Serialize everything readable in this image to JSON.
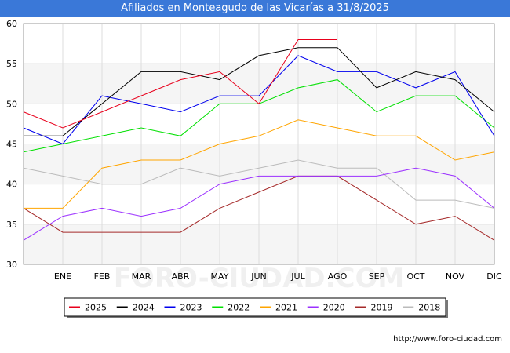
{
  "header": {
    "title": "Afiliados en Monteagudo de las Vicarías a 31/8/2025"
  },
  "footer": {
    "url": "http://www.foro-ciudad.com"
  },
  "watermark": "FORO-CIUDAD.COM",
  "chart_data": {
    "type": "line",
    "title": "Afiliados en Monteagudo de las Vicarías a 31/8/2025",
    "xlabel": "",
    "ylabel": "",
    "categories": [
      "",
      "ENE",
      "FEB",
      "MAR",
      "ABR",
      "MAY",
      "JUN",
      "JUL",
      "AGO",
      "SEP",
      "OCT",
      "NOV",
      "DIC"
    ],
    "ylim": [
      30,
      60
    ],
    "yticks": [
      30,
      35,
      40,
      45,
      50,
      55,
      60
    ],
    "grid": true,
    "legend_position": "bottom",
    "series": [
      {
        "name": "2025",
        "color": "#e8001c",
        "values": [
          49,
          47,
          49,
          51,
          53,
          54,
          50,
          58,
          58,
          null,
          null,
          null,
          null
        ]
      },
      {
        "name": "2024",
        "color": "#000000",
        "values": [
          46,
          46,
          50,
          54,
          54,
          53,
          56,
          57,
          57,
          52,
          54,
          53,
          49
        ]
      },
      {
        "name": "2023",
        "color": "#0000ee",
        "values": [
          47,
          45,
          51,
          50,
          49,
          51,
          51,
          56,
          54,
          54,
          52,
          54,
          46
        ]
      },
      {
        "name": "2022",
        "color": "#00e000",
        "values": [
          44,
          45,
          46,
          47,
          46,
          50,
          50,
          52,
          53,
          49,
          51,
          51,
          47
        ]
      },
      {
        "name": "2021",
        "color": "#ffa500",
        "values": [
          37,
          37,
          42,
          43,
          43,
          45,
          46,
          48,
          47,
          46,
          46,
          43,
          44
        ]
      },
      {
        "name": "2020",
        "color": "#9b30ff",
        "values": [
          33,
          36,
          37,
          36,
          37,
          40,
          41,
          41,
          41,
          41,
          42,
          41,
          37
        ]
      },
      {
        "name": "2019",
        "color": "#a52a2a",
        "values": [
          37,
          34,
          34,
          34,
          34,
          37,
          39,
          41,
          41,
          38,
          35,
          36,
          33
        ]
      },
      {
        "name": "2018",
        "color": "#bbbbbb",
        "values": [
          42,
          41,
          40,
          40,
          42,
          41,
          42,
          43,
          42,
          42,
          38,
          38,
          37
        ]
      }
    ]
  }
}
